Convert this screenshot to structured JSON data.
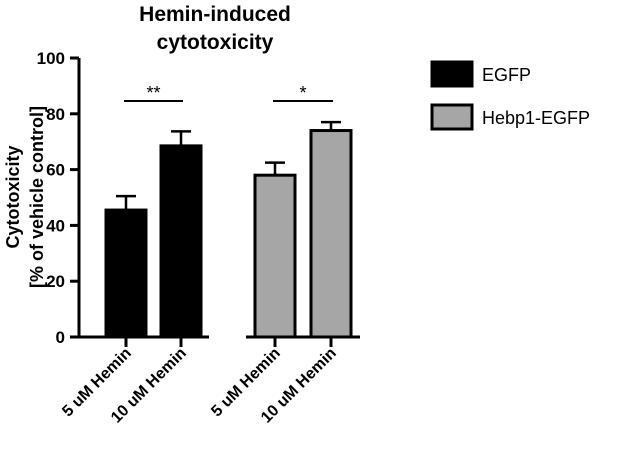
{
  "chart_data": {
    "type": "bar",
    "title_lines": [
      "Hemin-induced",
      "cytotoxicity"
    ],
    "ylabel_lines": [
      "Cytotoxicity",
      "[% of vehicle control]"
    ],
    "xlabel": "",
    "ylim": [
      0,
      100
    ],
    "yticks": [
      0,
      20,
      40,
      60,
      80,
      100
    ],
    "legend_position": "right",
    "grid": false,
    "series": [
      {
        "name": "EGFP",
        "color": "#000000",
        "categories": [
          "5 uM Hemin",
          "10 uM Hemin"
        ],
        "values": [
          45.5,
          68.5
        ],
        "errors": [
          5.0,
          5.2
        ]
      },
      {
        "name": "Hebp1-EGFP",
        "color": "#a6a6a6",
        "categories": [
          "5 uM Hemin",
          "10 uM Hemin"
        ],
        "values": [
          58.0,
          74.0
        ],
        "errors": [
          4.5,
          3.0
        ]
      }
    ],
    "annotations": [
      {
        "text": "**",
        "series": 0
      },
      {
        "text": "*",
        "series": 1
      }
    ]
  }
}
